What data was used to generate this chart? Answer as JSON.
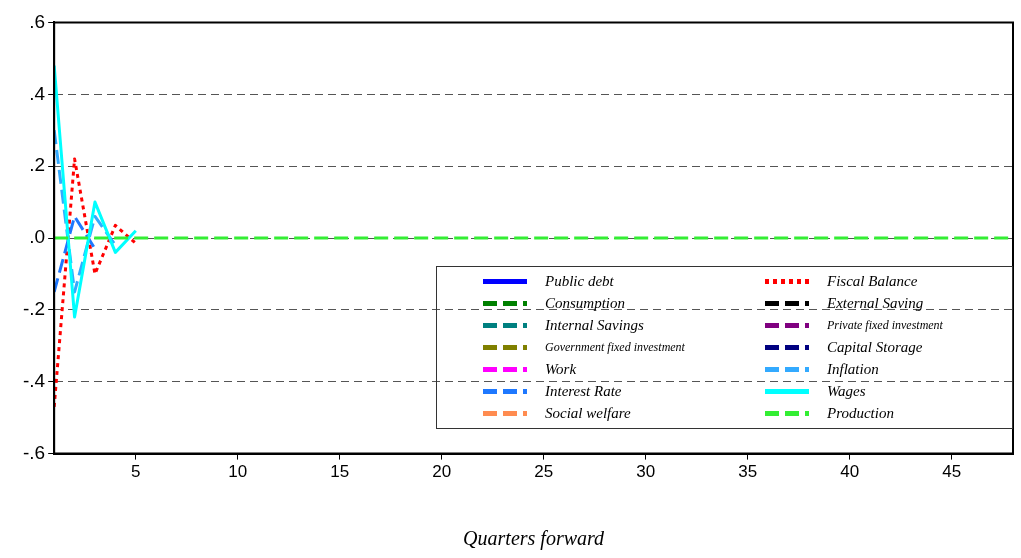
{
  "chart_data": {
    "type": "line",
    "xlabel": "Quarters forward",
    "x": [
      1,
      2,
      3,
      4,
      5,
      6,
      7,
      8,
      9,
      10,
      11,
      12,
      13,
      14,
      15,
      16,
      17,
      18,
      19,
      20,
      21,
      22,
      23,
      24,
      25,
      26,
      27,
      28,
      29,
      30,
      31,
      32,
      33,
      34,
      35,
      36,
      37,
      38,
      39,
      40,
      41,
      42,
      43,
      44,
      45,
      46,
      47,
      48
    ],
    "xlim": [
      1,
      48
    ],
    "xticks": [
      5,
      10,
      15,
      20,
      25,
      30,
      35,
      40,
      45
    ],
    "ylim": [
      -0.6,
      0.6
    ],
    "yticks": [
      {
        "value": -0.6,
        "label": "-.6"
      },
      {
        "value": -0.4,
        "label": "-.4"
      },
      {
        "value": -0.2,
        "label": "-.2"
      },
      {
        "value": 0,
        "label": ".0"
      },
      {
        "value": 0.2,
        "label": ".2"
      },
      {
        "value": 0.4,
        "label": ".4"
      },
      {
        "value": 0.6,
        "label": ".6"
      }
    ],
    "grid": "y",
    "legend": "bottom right",
    "marker": "none",
    "series": [
      {
        "name": "Public debt",
        "color": "#0000ff",
        "line_style": "solid",
        "values": [
          null,
          null,
          null,
          null,
          null,
          null,
          null,
          null,
          null,
          null,
          null,
          null,
          null,
          null,
          null,
          null,
          null,
          null,
          null,
          null,
          null,
          null,
          null,
          null,
          null,
          null,
          null,
          null,
          null,
          null,
          null,
          null,
          null,
          null,
          null,
          null,
          null,
          null,
          null,
          null,
          null,
          null,
          null,
          null,
          null,
          null,
          null,
          null
        ]
      },
      {
        "name": "Fiscal Balance",
        "color": "#ff0000",
        "line_style": "dotted",
        "values": [
          -0.47,
          0.22,
          -0.1,
          0.035,
          -0.015,
          null,
          null,
          null,
          null,
          null,
          null,
          null,
          null,
          null,
          null,
          null,
          null,
          null,
          null,
          null,
          null,
          null,
          null,
          null,
          null,
          null,
          null,
          null,
          null,
          null,
          null,
          null,
          null,
          null,
          null,
          null,
          null,
          null,
          null,
          null,
          null,
          null,
          null,
          null,
          null,
          null,
          null,
          null
        ]
      },
      {
        "name": "Consumption",
        "color": "#008000",
        "line_style": "dashed",
        "values": [
          null,
          null,
          null,
          null,
          null,
          null,
          null,
          null,
          null,
          null,
          null,
          null,
          null,
          null,
          null,
          null,
          null,
          null,
          null,
          null,
          null,
          null,
          null,
          null,
          null,
          null,
          null,
          null,
          null,
          null,
          null,
          null,
          null,
          null,
          null,
          null,
          null,
          null,
          null,
          null,
          null,
          null,
          null,
          null,
          null,
          null,
          null,
          null
        ]
      },
      {
        "name": "External Saving",
        "color": "#000000",
        "line_style": "dashed",
        "values": [
          null,
          null,
          null,
          null,
          null,
          null,
          null,
          null,
          null,
          null,
          null,
          null,
          null,
          null,
          null,
          null,
          null,
          null,
          null,
          null,
          null,
          null,
          null,
          null,
          null,
          null,
          null,
          null,
          null,
          null,
          null,
          null,
          null,
          null,
          null,
          null,
          null,
          null,
          null,
          null,
          null,
          null,
          null,
          null,
          null,
          null,
          null,
          null
        ]
      },
      {
        "name": "Internal Savings",
        "color": "#008080",
        "line_style": "dashed",
        "values": [
          null,
          null,
          null,
          null,
          null,
          null,
          null,
          null,
          null,
          null,
          null,
          null,
          null,
          null,
          null,
          null,
          null,
          null,
          null,
          null,
          null,
          null,
          null,
          null,
          null,
          null,
          null,
          null,
          null,
          null,
          null,
          null,
          null,
          null,
          null,
          null,
          null,
          null,
          null,
          null,
          null,
          null,
          null,
          null,
          null,
          null,
          null,
          null
        ]
      },
      {
        "name": "Private fixed investment",
        "color": "#800080",
        "line_style": "dashed",
        "values": [
          null,
          null,
          null,
          null,
          null,
          null,
          null,
          null,
          null,
          null,
          null,
          null,
          null,
          null,
          null,
          null,
          null,
          null,
          null,
          null,
          null,
          null,
          null,
          null,
          null,
          null,
          null,
          null,
          null,
          null,
          null,
          null,
          null,
          null,
          null,
          null,
          null,
          null,
          null,
          null,
          null,
          null,
          null,
          null,
          null,
          null,
          null,
          null
        ]
      },
      {
        "name": "Government fixed investment",
        "color": "#808000",
        "line_style": "dashed",
        "values": [
          null,
          null,
          null,
          null,
          null,
          null,
          null,
          null,
          null,
          null,
          null,
          null,
          null,
          null,
          null,
          null,
          null,
          null,
          null,
          null,
          null,
          null,
          null,
          null,
          null,
          null,
          null,
          null,
          null,
          null,
          null,
          null,
          null,
          null,
          null,
          null,
          null,
          null,
          null,
          null,
          null,
          null,
          null,
          null,
          null,
          null,
          null,
          null
        ]
      },
      {
        "name": "Capital Storage",
        "color": "#000080",
        "line_style": "dashed",
        "values": [
          null,
          null,
          null,
          null,
          null,
          null,
          null,
          null,
          null,
          null,
          null,
          null,
          null,
          null,
          null,
          null,
          null,
          null,
          null,
          null,
          null,
          null,
          null,
          null,
          null,
          null,
          null,
          null,
          null,
          null,
          null,
          null,
          null,
          null,
          null,
          null,
          null,
          null,
          null,
          null,
          null,
          null,
          null,
          null,
          null,
          null,
          null,
          null
        ]
      },
      {
        "name": "Work",
        "color": "#ff00ff",
        "line_style": "dashed",
        "values": [
          null,
          null,
          null,
          null,
          null,
          null,
          null,
          null,
          null,
          null,
          null,
          null,
          null,
          null,
          null,
          null,
          null,
          null,
          null,
          null,
          null,
          null,
          null,
          null,
          null,
          null,
          null,
          null,
          null,
          null,
          null,
          null,
          null,
          null,
          null,
          null,
          null,
          null,
          null,
          null,
          null,
          null,
          null,
          null,
          null,
          null,
          null,
          null
        ]
      },
      {
        "name": "Inflation",
        "color": "#33aaff",
        "line_style": "dashed",
        "values": [
          0.3,
          -0.15,
          0.06,
          -0.02,
          null,
          null,
          null,
          null,
          null,
          null,
          null,
          null,
          null,
          null,
          null,
          null,
          null,
          null,
          null,
          null,
          null,
          null,
          null,
          null,
          null,
          null,
          null,
          null,
          null,
          null,
          null,
          null,
          null,
          null,
          null,
          null,
          null,
          null,
          null,
          null,
          null,
          null,
          null,
          null,
          null,
          null,
          null,
          null
        ]
      },
      {
        "name": "Interest Rate",
        "color": "#1e78ff",
        "line_style": "dashed",
        "values": [
          -0.15,
          0.06,
          -0.03,
          null,
          null,
          null,
          null,
          null,
          null,
          null,
          null,
          null,
          null,
          null,
          null,
          null,
          null,
          null,
          null,
          null,
          null,
          null,
          null,
          null,
          null,
          null,
          null,
          null,
          null,
          null,
          null,
          null,
          null,
          null,
          null,
          null,
          null,
          null,
          null,
          null,
          null,
          null,
          null,
          null,
          null,
          null,
          null,
          null
        ]
      },
      {
        "name": "Wages",
        "color": "#00ffff",
        "line_style": "solid",
        "values": [
          0.48,
          -0.22,
          0.1,
          -0.04,
          0.02,
          null,
          null,
          null,
          null,
          null,
          null,
          null,
          null,
          null,
          null,
          null,
          null,
          null,
          null,
          null,
          null,
          null,
          null,
          null,
          null,
          null,
          null,
          null,
          null,
          null,
          null,
          null,
          null,
          null,
          null,
          null,
          null,
          null,
          null,
          null,
          null,
          null,
          null,
          null,
          null,
          null,
          null,
          null
        ]
      },
      {
        "name": "Social welfare",
        "color": "#ff8c50",
        "line_style": "dashed",
        "values": [
          null,
          null,
          null,
          null,
          null,
          null,
          null,
          null,
          null,
          null,
          null,
          null,
          null,
          null,
          null,
          null,
          null,
          null,
          null,
          null,
          null,
          null,
          null,
          null,
          null,
          null,
          null,
          null,
          null,
          null,
          null,
          null,
          null,
          null,
          null,
          null,
          null,
          null,
          null,
          null,
          null,
          null,
          null,
          null,
          null,
          null,
          null,
          null
        ]
      },
      {
        "name": "Production",
        "color": "#33ee33",
        "line_style": "dashed",
        "values": [
          0,
          0,
          0,
          0,
          0,
          0,
          0,
          0,
          0,
          0,
          0,
          0,
          0,
          0,
          0,
          0,
          0,
          0,
          0,
          0,
          0,
          0,
          0,
          0,
          0,
          0,
          0,
          0,
          0,
          0,
          0,
          0,
          0,
          0,
          0,
          0,
          0,
          0,
          0,
          0,
          0,
          0,
          0,
          0,
          0,
          0,
          0,
          0
        ]
      }
    ]
  }
}
